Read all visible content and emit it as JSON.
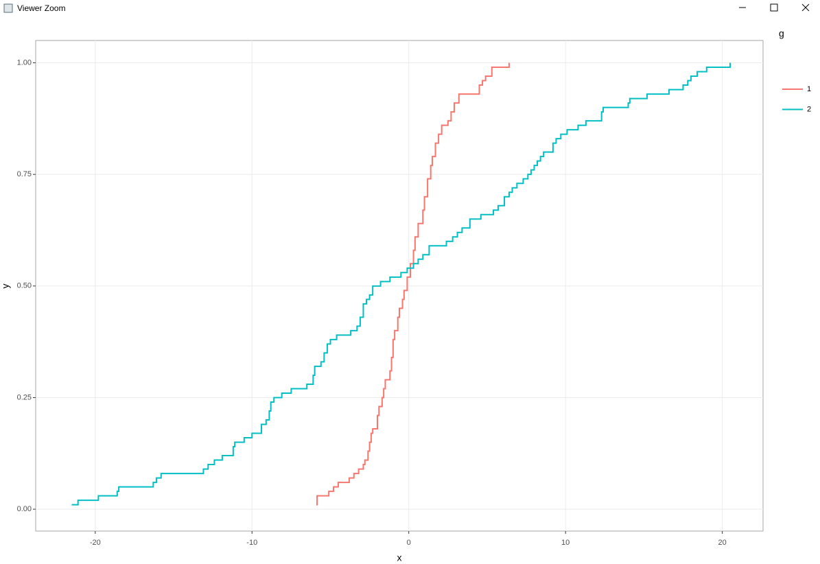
{
  "window": {
    "title": "Viewer Zoom"
  },
  "chart_data": {
    "type": "step",
    "xlabel": "x",
    "ylabel": "y",
    "legend_title": "g",
    "grid": true,
    "xlim": [
      -23.8,
      22.6
    ],
    "ylim": [
      -0.049,
      1.05
    ],
    "xticks": [
      -20,
      -10,
      0,
      10,
      20
    ],
    "yticks": [
      {
        "value": 0,
        "label": "0.00"
      },
      {
        "value": 0.25,
        "label": "0.25"
      },
      {
        "value": 0.5,
        "label": "0.50"
      },
      {
        "value": 0.75,
        "label": "0.75"
      },
      {
        "value": 1,
        "label": "1.00"
      }
    ],
    "series": [
      {
        "name": "1",
        "color": "#F8766D",
        "x": [
          -5.9,
          -5.85,
          -5.1,
          -4.8,
          -4.5,
          -3.8,
          -3.5,
          -3.2,
          -2.9,
          -2.8,
          -2.6,
          -2.5,
          -2.4,
          -2.3,
          -2.0,
          -1.9,
          -1.7,
          -1.6,
          -1.5,
          -1.2,
          -1.1,
          -1.0,
          -0.9,
          -0.7,
          -0.6,
          -0.4,
          -0.3,
          -0.1,
          0.1,
          0.3,
          0.4,
          0.6,
          0.9,
          1.0,
          1.2,
          1.4,
          1.5,
          1.7,
          1.9,
          2.1,
          2.5,
          2.7,
          2.9,
          3.2,
          4.5,
          4.7,
          4.9,
          5.3,
          6.4
        ],
        "values": [
          0.01,
          0.03,
          0.04,
          0.05,
          0.06,
          0.07,
          0.08,
          0.09,
          0.1,
          0.11,
          0.13,
          0.15,
          0.17,
          0.18,
          0.21,
          0.23,
          0.25,
          0.27,
          0.29,
          0.31,
          0.34,
          0.38,
          0.4,
          0.43,
          0.45,
          0.47,
          0.49,
          0.52,
          0.55,
          0.58,
          0.61,
          0.64,
          0.67,
          0.7,
          0.74,
          0.77,
          0.79,
          0.82,
          0.84,
          0.86,
          0.87,
          0.89,
          0.91,
          0.93,
          0.95,
          0.96,
          0.97,
          0.99,
          1.0
        ]
      },
      {
        "name": "2",
        "color": "#00BFC4",
        "x": [
          -21.5,
          -21.1,
          -19.8,
          -18.6,
          -18.5,
          -16.3,
          -16.1,
          -15.8,
          -13.1,
          -12.8,
          -12.4,
          -11.9,
          -11.2,
          -11.1,
          -10.5,
          -10.0,
          -9.4,
          -9.1,
          -8.9,
          -8.8,
          -8.6,
          -8.1,
          -7.5,
          -6.5,
          -6.1,
          -6.0,
          -5.6,
          -5.4,
          -5.2,
          -5.0,
          -4.6,
          -3.7,
          -3.3,
          -3.1,
          -2.9,
          -2.7,
          -2.5,
          -2.3,
          -1.8,
          -1.2,
          -0.5,
          -0.1,
          0.3,
          0.6,
          0.9,
          1.3,
          2.4,
          2.8,
          3.1,
          3.4,
          3.9,
          4.6,
          5.4,
          5.7,
          6.1,
          6.4,
          6.6,
          6.9,
          7.3,
          7.6,
          7.8,
          8.0,
          8.2,
          8.4,
          8.6,
          9.2,
          9.4,
          9.7,
          10.1,
          10.8,
          11.3,
          12.3,
          12.4,
          14.0,
          14.1,
          15.2,
          16.6,
          17.5,
          17.8,
          18.0,
          18.4,
          19.0,
          20.5
        ],
        "values": [
          0.01,
          0.02,
          0.03,
          0.04,
          0.05,
          0.06,
          0.07,
          0.08,
          0.09,
          0.1,
          0.11,
          0.12,
          0.14,
          0.15,
          0.16,
          0.17,
          0.19,
          0.2,
          0.22,
          0.24,
          0.25,
          0.26,
          0.27,
          0.28,
          0.3,
          0.32,
          0.33,
          0.35,
          0.37,
          0.38,
          0.39,
          0.4,
          0.41,
          0.43,
          0.46,
          0.47,
          0.48,
          0.5,
          0.51,
          0.52,
          0.53,
          0.54,
          0.55,
          0.56,
          0.57,
          0.59,
          0.6,
          0.61,
          0.62,
          0.63,
          0.65,
          0.66,
          0.67,
          0.68,
          0.7,
          0.71,
          0.72,
          0.73,
          0.74,
          0.75,
          0.76,
          0.77,
          0.78,
          0.79,
          0.8,
          0.82,
          0.83,
          0.84,
          0.85,
          0.86,
          0.87,
          0.89,
          0.9,
          0.91,
          0.92,
          0.93,
          0.94,
          0.95,
          0.96,
          0.97,
          0.98,
          0.99,
          1.0
        ]
      }
    ]
  }
}
